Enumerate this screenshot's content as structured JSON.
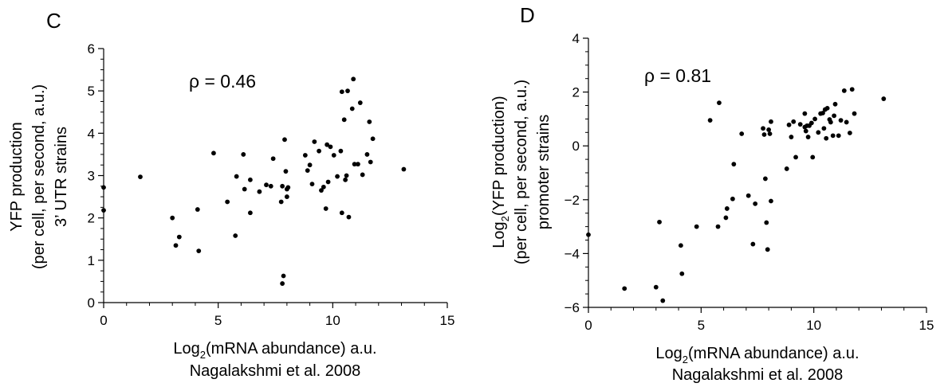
{
  "chart_data": [
    {
      "type": "scatter",
      "panel_label": "C",
      "annotation": "ρ = 0.46",
      "xlabel_prefix": "Log",
      "xlabel_sub": "2",
      "xlabel_suffix": "(mRNA abundance) a.u.",
      "xlabel_line2": "Nagalakshmi et al. 2008",
      "ylabel_lines": [
        "YFP production",
        "(per cell, per second, a.u.)",
        "3’ UTR strains"
      ],
      "xlim": [
        0,
        15
      ],
      "ylim": [
        0,
        6
      ],
      "xticks": [
        0,
        5,
        10,
        15
      ],
      "yticks": [
        0,
        1,
        2,
        3,
        4,
        5,
        6
      ],
      "grid": false,
      "points": [
        [
          0,
          2.72
        ],
        [
          0,
          2.18
        ],
        [
          1.6,
          2.97
        ],
        [
          3.0,
          2.0
        ],
        [
          3.15,
          1.35
        ],
        [
          3.3,
          1.55
        ],
        [
          4.1,
          2.2
        ],
        [
          4.15,
          1.22
        ],
        [
          4.8,
          3.53
        ],
        [
          5.4,
          2.38
        ],
        [
          5.75,
          1.58
        ],
        [
          5.8,
          2.98
        ],
        [
          6.1,
          3.5
        ],
        [
          6.15,
          2.68
        ],
        [
          6.4,
          2.12
        ],
        [
          6.4,
          2.9
        ],
        [
          6.8,
          2.62
        ],
        [
          7.1,
          2.78
        ],
        [
          7.3,
          2.75
        ],
        [
          7.4,
          3.4
        ],
        [
          7.75,
          2.38
        ],
        [
          7.8,
          0.45
        ],
        [
          7.8,
          2.75
        ],
        [
          7.85,
          0.63
        ],
        [
          7.9,
          3.85
        ],
        [
          7.95,
          3.1
        ],
        [
          8.0,
          2.68
        ],
        [
          8.0,
          2.5
        ],
        [
          8.05,
          2.72
        ],
        [
          8.8,
          3.48
        ],
        [
          8.9,
          3.12
        ],
        [
          9.0,
          3.25
        ],
        [
          9.1,
          2.8
        ],
        [
          9.2,
          3.8
        ],
        [
          9.4,
          3.58
        ],
        [
          9.5,
          2.65
        ],
        [
          9.6,
          2.73
        ],
        [
          9.7,
          2.22
        ],
        [
          9.75,
          3.73
        ],
        [
          9.8,
          2.85
        ],
        [
          9.9,
          3.68
        ],
        [
          10.05,
          3.48
        ],
        [
          10.2,
          2.98
        ],
        [
          10.35,
          3.58
        ],
        [
          10.4,
          2.12
        ],
        [
          10.4,
          4.98
        ],
        [
          10.5,
          4.32
        ],
        [
          10.55,
          2.9
        ],
        [
          10.6,
          3.0
        ],
        [
          10.65,
          5.0
        ],
        [
          10.7,
          2.02
        ],
        [
          10.85,
          4.58
        ],
        [
          10.9,
          5.28
        ],
        [
          10.95,
          3.27
        ],
        [
          11.1,
          3.27
        ],
        [
          11.2,
          4.72
        ],
        [
          11.3,
          3.02
        ],
        [
          11.5,
          3.5
        ],
        [
          11.6,
          4.27
        ],
        [
          11.65,
          3.32
        ],
        [
          11.75,
          3.87
        ],
        [
          13.1,
          3.15
        ]
      ]
    },
    {
      "type": "scatter",
      "panel_label": "D",
      "annotation": "ρ = 0.81",
      "xlabel_prefix": "Log",
      "xlabel_sub": "2",
      "xlabel_suffix": "(mRNA abundance) a.u.",
      "xlabel_line2": "Nagalakshmi et al. 2008",
      "ylabel_line1_prefix": "Log",
      "ylabel_line1_sub": "2",
      "ylabel_line1_suffix": "(YFP production)",
      "ylabel_lines": [
        "(per cell, per second, a.u.)",
        "promoter strains"
      ],
      "xlim": [
        0,
        15
      ],
      "ylim": [
        -6,
        4
      ],
      "xticks": [
        0,
        5,
        10,
        15
      ],
      "yticks": [
        -6,
        -4,
        -2,
        0,
        2,
        4
      ],
      "grid": false,
      "points": [
        [
          0,
          -3.3
        ],
        [
          1.6,
          -5.3
        ],
        [
          3.0,
          -5.25
        ],
        [
          3.15,
          -2.83
        ],
        [
          3.3,
          -5.75
        ],
        [
          4.1,
          -3.7
        ],
        [
          4.15,
          -4.75
        ],
        [
          4.8,
          -3.0
        ],
        [
          5.4,
          0.95
        ],
        [
          5.75,
          -3.0
        ],
        [
          5.8,
          1.6
        ],
        [
          6.1,
          -2.67
        ],
        [
          6.15,
          -2.33
        ],
        [
          6.4,
          -1.97
        ],
        [
          6.45,
          -0.68
        ],
        [
          6.8,
          0.45
        ],
        [
          7.1,
          -1.85
        ],
        [
          7.3,
          -3.65
        ],
        [
          7.4,
          -2.15
        ],
        [
          7.75,
          0.65
        ],
        [
          7.8,
          0.42
        ],
        [
          7.85,
          -1.22
        ],
        [
          7.9,
          -2.85
        ],
        [
          7.95,
          -3.85
        ],
        [
          8.0,
          0.6
        ],
        [
          8.05,
          0.45
        ],
        [
          8.1,
          0.9
        ],
        [
          8.1,
          -2.05
        ],
        [
          8.8,
          -0.85
        ],
        [
          8.9,
          0.78
        ],
        [
          9.0,
          0.33
        ],
        [
          9.1,
          0.9
        ],
        [
          9.2,
          -0.42
        ],
        [
          9.4,
          0.8
        ],
        [
          9.6,
          1.2
        ],
        [
          9.6,
          0.7
        ],
        [
          9.65,
          0.55
        ],
        [
          9.7,
          0.75
        ],
        [
          9.75,
          0.33
        ],
        [
          9.8,
          0.75
        ],
        [
          9.9,
          0.85
        ],
        [
          9.95,
          -0.42
        ],
        [
          10.05,
          1.0
        ],
        [
          10.2,
          0.5
        ],
        [
          10.3,
          1.2
        ],
        [
          10.4,
          1.22
        ],
        [
          10.45,
          0.65
        ],
        [
          10.5,
          1.35
        ],
        [
          10.55,
          0.28
        ],
        [
          10.6,
          1.4
        ],
        [
          10.7,
          0.98
        ],
        [
          10.75,
          0.88
        ],
        [
          10.85,
          0.38
        ],
        [
          10.9,
          1.12
        ],
        [
          10.95,
          1.55
        ],
        [
          11.1,
          0.38
        ],
        [
          11.2,
          0.95
        ],
        [
          11.35,
          2.05
        ],
        [
          11.45,
          0.88
        ],
        [
          11.6,
          0.48
        ],
        [
          11.7,
          2.1
        ],
        [
          11.8,
          1.2
        ],
        [
          13.1,
          1.75
        ]
      ]
    }
  ]
}
